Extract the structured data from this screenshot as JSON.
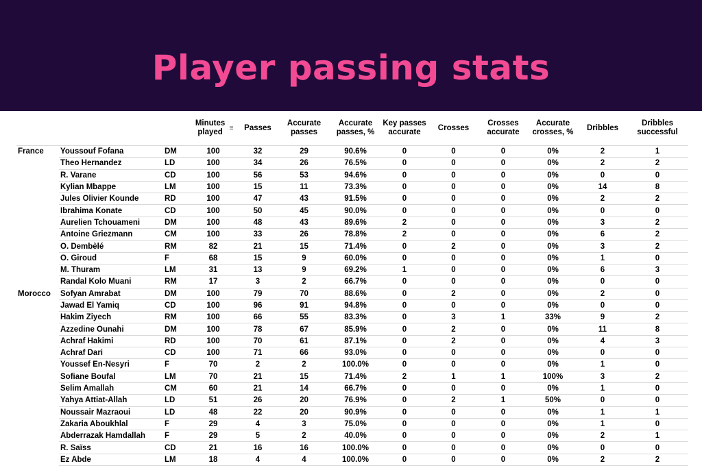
{
  "title": "Player passing stats",
  "columns": {
    "minutes": "Minutes played",
    "minutes_sort_icon": "sort-icon",
    "passes": "Passes",
    "accurate_passes": "Accurate passes",
    "accurate_passes_pct": "Accurate passes, %",
    "key_passes": "Key passes accurate",
    "crosses": "Crosses",
    "crosses_accurate": "Crosses accurate",
    "accurate_crosses_pct": "Accurate crosses, %",
    "dribbles": "Dribbles",
    "dribbles_successful": "Dribbles successful"
  },
  "rows": [
    {
      "team": "France",
      "name": "Youssouf Fofana",
      "pos": "DM",
      "min": "100",
      "passes": "32",
      "acc": "29",
      "acc_pct": "90.6%",
      "key": "0",
      "crosses": "0",
      "cr_acc": "0",
      "cr_pct": "0%",
      "drib": "2",
      "drib_s": "1"
    },
    {
      "team": "",
      "name": "Theo Hernandez",
      "pos": "LD",
      "min": "100",
      "passes": "34",
      "acc": "26",
      "acc_pct": "76.5%",
      "key": "0",
      "crosses": "0",
      "cr_acc": "0",
      "cr_pct": "0%",
      "drib": "2",
      "drib_s": "2"
    },
    {
      "team": "",
      "name": "R. Varane",
      "pos": "CD",
      "min": "100",
      "passes": "56",
      "acc": "53",
      "acc_pct": "94.6%",
      "key": "0",
      "crosses": "0",
      "cr_acc": "0",
      "cr_pct": "0%",
      "drib": "0",
      "drib_s": "0"
    },
    {
      "team": "",
      "name": "Kylian Mbappe",
      "pos": "LM",
      "min": "100",
      "passes": "15",
      "acc": "11",
      "acc_pct": "73.3%",
      "key": "0",
      "crosses": "0",
      "cr_acc": "0",
      "cr_pct": "0%",
      "drib": "14",
      "drib_s": "8"
    },
    {
      "team": "",
      "name": "Jules Olivier Kounde",
      "pos": "RD",
      "min": "100",
      "passes": "47",
      "acc": "43",
      "acc_pct": "91.5%",
      "key": "0",
      "crosses": "0",
      "cr_acc": "0",
      "cr_pct": "0%",
      "drib": "2",
      "drib_s": "2"
    },
    {
      "team": "",
      "name": "Ibrahima Konate",
      "pos": "CD",
      "min": "100",
      "passes": "50",
      "acc": "45",
      "acc_pct": "90.0%",
      "key": "0",
      "crosses": "0",
      "cr_acc": "0",
      "cr_pct": "0%",
      "drib": "0",
      "drib_s": "0"
    },
    {
      "team": "",
      "name": "Aurelien Tchouameni",
      "pos": "DM",
      "min": "100",
      "passes": "48",
      "acc": "43",
      "acc_pct": "89.6%",
      "key": "2",
      "crosses": "0",
      "cr_acc": "0",
      "cr_pct": "0%",
      "drib": "3",
      "drib_s": "2"
    },
    {
      "team": "",
      "name": "Antoine Griezmann",
      "pos": "CM",
      "min": "100",
      "passes": "33",
      "acc": "26",
      "acc_pct": "78.8%",
      "key": "2",
      "crosses": "0",
      "cr_acc": "0",
      "cr_pct": "0%",
      "drib": "6",
      "drib_s": "2"
    },
    {
      "team": "",
      "name": "O. Dembèlé",
      "pos": "RM",
      "min": "82",
      "passes": "21",
      "acc": "15",
      "acc_pct": "71.4%",
      "key": "0",
      "crosses": "2",
      "cr_acc": "0",
      "cr_pct": "0%",
      "drib": "3",
      "drib_s": "2"
    },
    {
      "team": "",
      "name": "O. Giroud",
      "pos": "F",
      "min": "68",
      "passes": "15",
      "acc": "9",
      "acc_pct": "60.0%",
      "key": "0",
      "crosses": "0",
      "cr_acc": "0",
      "cr_pct": "0%",
      "drib": "1",
      "drib_s": "0"
    },
    {
      "team": "",
      "name": "M. Thuram",
      "pos": "LM",
      "min": "31",
      "passes": "13",
      "acc": "9",
      "acc_pct": "69.2%",
      "key": "1",
      "crosses": "0",
      "cr_acc": "0",
      "cr_pct": "0%",
      "drib": "6",
      "drib_s": "3"
    },
    {
      "team": "",
      "name": "Randal Kolo Muani",
      "pos": "RM",
      "min": "17",
      "passes": "3",
      "acc": "2",
      "acc_pct": "66.7%",
      "key": "0",
      "crosses": "0",
      "cr_acc": "0",
      "cr_pct": "0%",
      "drib": "0",
      "drib_s": "0"
    },
    {
      "team": "Morocco",
      "name": "Sofyan Amrabat",
      "pos": "DM",
      "min": "100",
      "passes": "79",
      "acc": "70",
      "acc_pct": "88.6%",
      "key": "0",
      "crosses": "2",
      "cr_acc": "0",
      "cr_pct": "0%",
      "drib": "2",
      "drib_s": "0"
    },
    {
      "team": "",
      "name": "Jawad El Yamiq",
      "pos": "CD",
      "min": "100",
      "passes": "96",
      "acc": "91",
      "acc_pct": "94.8%",
      "key": "0",
      "crosses": "0",
      "cr_acc": "0",
      "cr_pct": "0%",
      "drib": "0",
      "drib_s": "0"
    },
    {
      "team": "",
      "name": "Hakim Ziyech",
      "pos": "RM",
      "min": "100",
      "passes": "66",
      "acc": "55",
      "acc_pct": "83.3%",
      "key": "0",
      "crosses": "3",
      "cr_acc": "1",
      "cr_pct": "33%",
      "drib": "9",
      "drib_s": "2"
    },
    {
      "team": "",
      "name": "Azzedine Ounahi",
      "pos": "DM",
      "min": "100",
      "passes": "78",
      "acc": "67",
      "acc_pct": "85.9%",
      "key": "0",
      "crosses": "2",
      "cr_acc": "0",
      "cr_pct": "0%",
      "drib": "11",
      "drib_s": "8"
    },
    {
      "team": "",
      "name": "Achraf Hakimi",
      "pos": "RD",
      "min": "100",
      "passes": "70",
      "acc": "61",
      "acc_pct": "87.1%",
      "key": "0",
      "crosses": "2",
      "cr_acc": "0",
      "cr_pct": "0%",
      "drib": "4",
      "drib_s": "3"
    },
    {
      "team": "",
      "name": "Achraf Dari",
      "pos": "CD",
      "min": "100",
      "passes": "71",
      "acc": "66",
      "acc_pct": "93.0%",
      "key": "0",
      "crosses": "0",
      "cr_acc": "0",
      "cr_pct": "0%",
      "drib": "0",
      "drib_s": "0"
    },
    {
      "team": "",
      "name": "Youssef En-Nesyri",
      "pos": "F",
      "min": "70",
      "passes": "2",
      "acc": "2",
      "acc_pct": "100.0%",
      "key": "0",
      "crosses": "0",
      "cr_acc": "0",
      "cr_pct": "0%",
      "drib": "1",
      "drib_s": "0"
    },
    {
      "team": "",
      "name": "Sofiane Boufal",
      "pos": "LM",
      "min": "70",
      "passes": "21",
      "acc": "15",
      "acc_pct": "71.4%",
      "key": "2",
      "crosses": "1",
      "cr_acc": "1",
      "cr_pct": "100%",
      "drib": "3",
      "drib_s": "2"
    },
    {
      "team": "",
      "name": "Selim Amallah",
      "pos": "CM",
      "min": "60",
      "passes": "21",
      "acc": "14",
      "acc_pct": "66.7%",
      "key": "0",
      "crosses": "0",
      "cr_acc": "0",
      "cr_pct": "0%",
      "drib": "1",
      "drib_s": "0"
    },
    {
      "team": "",
      "name": "Yahya Attiat-Allah",
      "pos": "LD",
      "min": "51",
      "passes": "26",
      "acc": "20",
      "acc_pct": "76.9%",
      "key": "0",
      "crosses": "2",
      "cr_acc": "1",
      "cr_pct": "50%",
      "drib": "0",
      "drib_s": "0"
    },
    {
      "team": "",
      "name": "Noussair Mazraoui",
      "pos": "LD",
      "min": "48",
      "passes": "22",
      "acc": "20",
      "acc_pct": "90.9%",
      "key": "0",
      "crosses": "0",
      "cr_acc": "0",
      "cr_pct": "0%",
      "drib": "1",
      "drib_s": "1"
    },
    {
      "team": "",
      "name": "Zakaria Aboukhlal",
      "pos": "F",
      "min": "29",
      "passes": "4",
      "acc": "3",
      "acc_pct": "75.0%",
      "key": "0",
      "crosses": "0",
      "cr_acc": "0",
      "cr_pct": "0%",
      "drib": "1",
      "drib_s": "0"
    },
    {
      "team": "",
      "name": "Abderrazak Hamdallah",
      "pos": "F",
      "min": "29",
      "passes": "5",
      "acc": "2",
      "acc_pct": "40.0%",
      "key": "0",
      "crosses": "0",
      "cr_acc": "0",
      "cr_pct": "0%",
      "drib": "2",
      "drib_s": "1"
    },
    {
      "team": "",
      "name": "R. Saïss",
      "pos": "CD",
      "min": "21",
      "passes": "16",
      "acc": "16",
      "acc_pct": "100.0%",
      "key": "0",
      "crosses": "0",
      "cr_acc": "0",
      "cr_pct": "0%",
      "drib": "0",
      "drib_s": "0"
    },
    {
      "team": "",
      "name": "Ez Abde",
      "pos": "LM",
      "min": "18",
      "passes": "4",
      "acc": "4",
      "acc_pct": "100.0%",
      "key": "0",
      "crosses": "0",
      "cr_acc": "0",
      "cr_pct": "0%",
      "drib": "2",
      "drib_s": "2"
    }
  ]
}
